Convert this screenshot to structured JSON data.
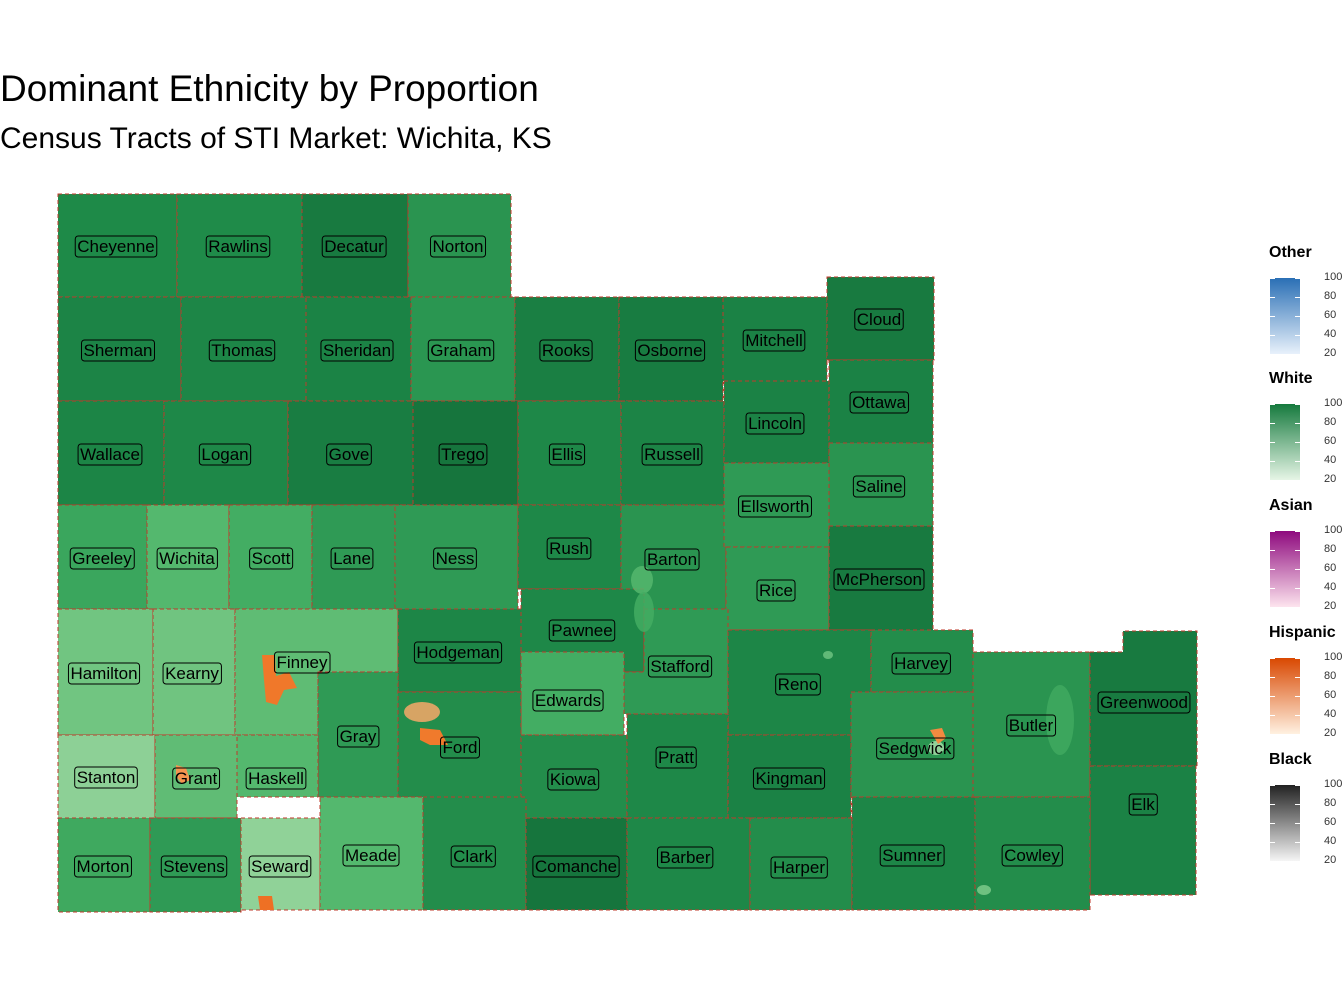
{
  "title": "Dominant Ethnicity by Proportion",
  "subtitle": "Census Tracts of STI Market: Wichita, KS",
  "counties": [
    {
      "name": "Cheyenne",
      "color": "#1e8a48"
    },
    {
      "name": "Rawlins",
      "color": "#1f8b49"
    },
    {
      "name": "Decatur",
      "color": "#187a40"
    },
    {
      "name": "Norton",
      "color": "#2a9450"
    },
    {
      "name": "Sherman",
      "color": "#1c8446"
    },
    {
      "name": "Thomas",
      "color": "#1d8647"
    },
    {
      "name": "Sheridan",
      "color": "#1b8345"
    },
    {
      "name": "Graham",
      "color": "#2a9651"
    },
    {
      "name": "Rooks",
      "color": "#1a7f43"
    },
    {
      "name": "Osborne",
      "color": "#187c41"
    },
    {
      "name": "Mitchell",
      "color": "#1b8245"
    },
    {
      "name": "Cloud",
      "color": "#187a40"
    },
    {
      "name": "Wallace",
      "color": "#1c8546"
    },
    {
      "name": "Logan",
      "color": "#1e8848"
    },
    {
      "name": "Gove",
      "color": "#197d42"
    },
    {
      "name": "Trego",
      "color": "#16753d"
    },
    {
      "name": "Ellis",
      "color": "#1e8848"
    },
    {
      "name": "Russell",
      "color": "#1c8446"
    },
    {
      "name": "Lincoln",
      "color": "#1b8245"
    },
    {
      "name": "Ottawa",
      "color": "#1b8245"
    },
    {
      "name": "Greeley",
      "color": "#3aa65d"
    },
    {
      "name": "Wichita",
      "color": "#54b86e"
    },
    {
      "name": "Scott",
      "color": "#43ad63"
    },
    {
      "name": "Lane",
      "color": "#2f9a55"
    },
    {
      "name": "Ness",
      "color": "#2f9a55"
    },
    {
      "name": "Rush",
      "color": "#1e8848"
    },
    {
      "name": "Barton",
      "color": "#2a9450"
    },
    {
      "name": "Ellsworth",
      "color": "#2f9a55"
    },
    {
      "name": "Saline",
      "color": "#2a9450"
    },
    {
      "name": "Rice",
      "color": "#2f9a55"
    },
    {
      "name": "McPherson",
      "color": "#187a40"
    },
    {
      "name": "Hamilton",
      "color": "#71c581"
    },
    {
      "name": "Kearny",
      "color": "#70c480"
    },
    {
      "name": "Finney",
      "color": "#5fbc74"
    },
    {
      "name": "Hodgeman",
      "color": "#1d8647"
    },
    {
      "name": "Pawnee",
      "color": "#1e8848"
    },
    {
      "name": "Stafford",
      "color": "#2f9a55"
    },
    {
      "name": "Edwards",
      "color": "#43ad63"
    },
    {
      "name": "Reno",
      "color": "#1d8647"
    },
    {
      "name": "Harvey",
      "color": "#238d4b"
    },
    {
      "name": "Butler",
      "color": "#2a9450"
    },
    {
      "name": "Greenwood",
      "color": "#187a40"
    },
    {
      "name": "Gray",
      "color": "#2f9a55"
    },
    {
      "name": "Ford",
      "color": "#238d4b"
    },
    {
      "name": "Kiowa",
      "color": "#238d4b"
    },
    {
      "name": "Pratt",
      "color": "#1e8848"
    },
    {
      "name": "Kingman",
      "color": "#1b8245"
    },
    {
      "name": "Sedgwick",
      "color": "#2a9450"
    },
    {
      "name": "Stanton",
      "color": "#8dd096"
    },
    {
      "name": "Grant",
      "color": "#60bc75"
    },
    {
      "name": "Haskell",
      "color": "#54b86e"
    },
    {
      "name": "Elk",
      "color": "#1b8245"
    },
    {
      "name": "Morton",
      "color": "#3fa95f"
    },
    {
      "name": "Stevens",
      "color": "#2f9a55"
    },
    {
      "name": "Seward",
      "color": "#90d298"
    },
    {
      "name": "Meade",
      "color": "#54b86e"
    },
    {
      "name": "Clark",
      "color": "#238d4b"
    },
    {
      "name": "Comanche",
      "color": "#16753d"
    },
    {
      "name": "Barber",
      "color": "#1e8848"
    },
    {
      "name": "Harper",
      "color": "#238d4b"
    },
    {
      "name": "Sumner",
      "color": "#1d8647"
    },
    {
      "name": "Cowley",
      "color": "#238d4b"
    }
  ],
  "hispanic_patches": [
    {
      "county": "Finney",
      "color": "#f0782a"
    },
    {
      "county": "Ford",
      "color": "#f07a2c"
    },
    {
      "county": "Grant",
      "color": "#f59550"
    },
    {
      "county": "Seward",
      "color": "#ee7024"
    },
    {
      "county": "Sedgwick",
      "color": "#f28a40"
    }
  ],
  "legend": {
    "scales": [
      {
        "name": "Other",
        "colors": [
          "#e8f1fb",
          "#2a6fb5"
        ],
        "ticks": [
          "100",
          "80",
          "60",
          "40",
          "20"
        ]
      },
      {
        "name": "White",
        "colors": [
          "#e6f5e6",
          "#167a3e"
        ],
        "ticks": [
          "100",
          "80",
          "60",
          "40",
          "20"
        ]
      },
      {
        "name": "Asian",
        "colors": [
          "#fde4ee",
          "#8e0a7e"
        ],
        "ticks": [
          "100",
          "80",
          "60",
          "40",
          "20"
        ]
      },
      {
        "name": "Hispanic",
        "colors": [
          "#fff1e1",
          "#d94801"
        ],
        "ticks": [
          "100",
          "80",
          "60",
          "40",
          "20"
        ]
      },
      {
        "name": "Black",
        "colors": [
          "#f5f5f5",
          "#222222"
        ],
        "ticks": [
          "100",
          "80",
          "60",
          "40",
          "20"
        ]
      }
    ]
  }
}
